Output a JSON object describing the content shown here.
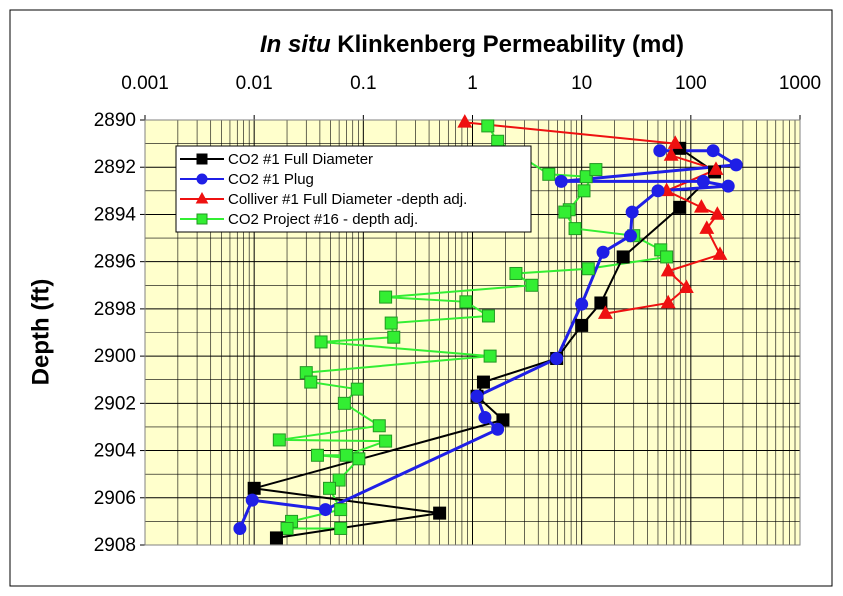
{
  "chart_data": {
    "type": "scatter",
    "title_italic": "In situ",
    "title": "Klinkenberg Permeability (md)",
    "y_label": "Depth (ft)",
    "x_scale": "log",
    "x_axis_position": "top",
    "y_reversed": true,
    "xlim": [
      0.001,
      1000
    ],
    "xticks": [
      0.001,
      0.01,
      0.1,
      1,
      10,
      100,
      1000
    ],
    "ylim": [
      2890,
      2908
    ],
    "yticks": [
      2890,
      2892,
      2894,
      2896,
      2898,
      2900,
      2902,
      2904,
      2906,
      2908
    ],
    "grid": true,
    "legend": "upper left",
    "plot_background": "#ffffcc",
    "series": [
      {
        "name": "CO2 #1 Full Diameter",
        "color": "#000000",
        "marker": "square",
        "x": [
          79,
          165,
          79,
          24,
          15,
          10,
          5.9,
          1.26,
          1.1,
          1.9,
          0.01,
          0.5,
          0.016
        ],
        "y": [
          2891.2,
          2892.2,
          2893.7,
          2895.8,
          2897.75,
          2898.7,
          2900.1,
          2901.1,
          2901.7,
          2902.7,
          2905.6,
          2906.65,
          2907.7
        ]
      },
      {
        "name": "CO2 #1 Plug",
        "color": "#1f1fe6",
        "marker": "circle",
        "x": [
          52,
          160,
          260,
          6.5,
          130,
          220,
          50,
          29,
          28,
          15.7,
          10,
          5.9,
          1.1,
          1.3,
          1.7,
          0.045,
          0.0096,
          0.0074
        ],
        "y": [
          2891.3,
          2891.3,
          2891.9,
          2892.6,
          2892.6,
          2892.8,
          2893.0,
          2893.9,
          2894.9,
          2895.6,
          2897.8,
          2900.1,
          2901.7,
          2902.6,
          2903.1,
          2906.5,
          2906.1,
          2907.3
        ]
      },
      {
        "name": "Colliver #1 Full Diameter -depth adj.",
        "color": "#ee1111",
        "marker": "triangle",
        "x": [
          0.85,
          72,
          66,
          170,
          60,
          125,
          175,
          140,
          185,
          62,
          91,
          62,
          16.5
        ],
        "y": [
          2890.1,
          2891.0,
          2891.5,
          2892.1,
          2893.0,
          2893.7,
          2894.0,
          2894.6,
          2895.7,
          2896.4,
          2897.1,
          2897.75,
          2898.2
        ]
      },
      {
        "name": "CO2 Project #16 - depth adj.",
        "color": "#33ee33",
        "marker": "square",
        "x": [
          1.38,
          1.7,
          5.0,
          11,
          13.5,
          10.5,
          7.7,
          7,
          8.7,
          30,
          53,
          60,
          11.5,
          2.5,
          3.5,
          0.16,
          0.87,
          1.4,
          0.18,
          0.19,
          0.041,
          1.45,
          0.03,
          0.033,
          0.088,
          0.067,
          0.14,
          0.017,
          0.16,
          0.07,
          0.038,
          0.091,
          0.06,
          0.049,
          0.062,
          0.022,
          0.02,
          0.062
        ],
        "y": [
          2890.25,
          2890.9,
          2892.3,
          2892.4,
          2892.1,
          2893.0,
          2893.8,
          2893.9,
          2894.6,
          2894.9,
          2895.5,
          2895.8,
          2896.3,
          2896.5,
          2897.0,
          2897.5,
          2897.7,
          2898.3,
          2898.6,
          2899.2,
          2899.4,
          2900.0,
          2900.7,
          2901.1,
          2901.4,
          2902.0,
          2902.95,
          2903.55,
          2903.6,
          2904.2,
          2904.2,
          2904.35,
          2905.25,
          2905.6,
          2906.5,
          2907.0,
          2907.3,
          2907.3
        ]
      }
    ]
  }
}
